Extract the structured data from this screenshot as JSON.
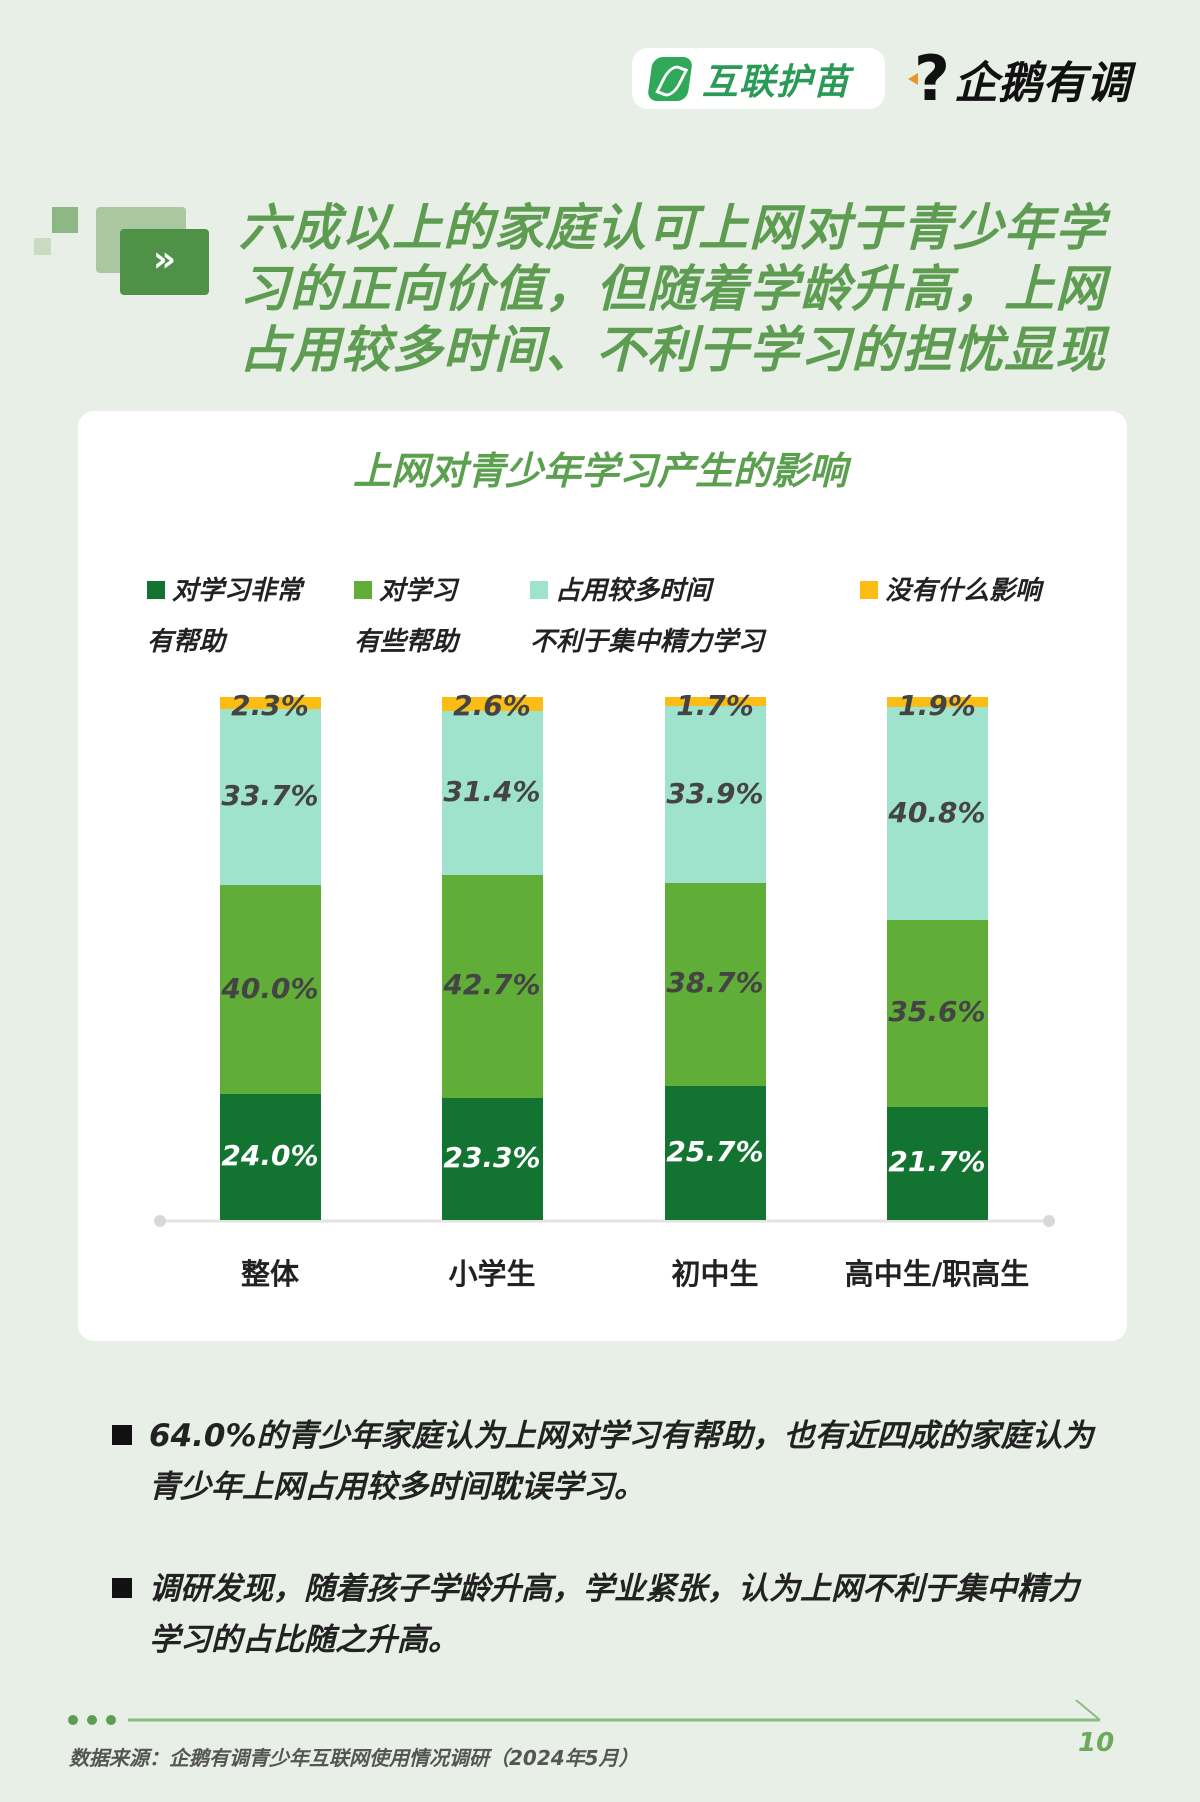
{
  "logos": {
    "partner": "互联护苗",
    "brand": "企鹅有调"
  },
  "headline": [
    "六成以上的家庭认可上网对于青少年学",
    "习的正向价值，但随着学龄升高，上网",
    "占用较多时间、不利于学习的担忧显现"
  ],
  "chart_data": {
    "type": "bar",
    "stacked": true,
    "title": "上网对青少年学习产生的影响",
    "categories": [
      "整体",
      "小学生",
      "初中生",
      "高中生/职高生"
    ],
    "legend_placement": "top",
    "series": [
      {
        "name": "对学习非常\n有帮助",
        "color": "#137431",
        "values": [
          24.0,
          23.3,
          25.7,
          21.7
        ],
        "labels": [
          "24.0%",
          "23.3%",
          "25.7%",
          "21.7%"
        ]
      },
      {
        "name": "对学习\n有些帮助",
        "color": "#60ad37",
        "values": [
          40.0,
          42.7,
          38.7,
          35.6
        ],
        "labels": [
          "40.0%",
          "42.7%",
          "38.7%",
          "35.6%"
        ]
      },
      {
        "name": "占用较多时间\n不利于集中精力学习",
        "color": "#a0e3cc",
        "values": [
          33.7,
          31.4,
          33.9,
          40.8
        ],
        "labels": [
          "33.7%",
          "31.4%",
          "33.9%",
          "40.8%"
        ]
      },
      {
        "name": "没有什么影响",
        "color": "#fbbd14",
        "values": [
          2.3,
          2.6,
          1.7,
          1.9
        ],
        "labels": [
          "2.3%",
          "2.6%",
          "1.7%",
          "1.9%"
        ]
      }
    ],
    "ylim": [
      0,
      100
    ],
    "grid": false
  },
  "bullets": [
    "64.0%的青少年家庭认为上网对学习有帮助，也有近四成的家庭认为青少年上网占用较多时间耽误学习。",
    "调研发现，随着孩子学龄升高，学业紧张，认为上网不利于集中精力学习的占比随之升高。"
  ],
  "footer": {
    "source": "数据来源：企鹅有调青少年互联网使用情况调研（2024年5月）",
    "page": "10"
  },
  "colors": {
    "background": "#e8efe6",
    "accent": "#5e9c52"
  }
}
